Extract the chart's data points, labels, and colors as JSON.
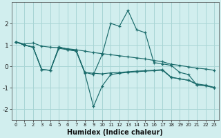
{
  "xlabel": "Humidex (Indice chaleur)",
  "background_color": "#d1eeee",
  "grid_color": "#a8d5d5",
  "line_color": "#1a6b6b",
  "x": [
    0,
    1,
    2,
    3,
    4,
    5,
    6,
    7,
    8,
    9,
    10,
    11,
    12,
    13,
    14,
    15,
    16,
    17,
    18,
    19,
    20,
    21,
    22,
    23
  ],
  "line_top_trend": [
    1.15,
    1.05,
    1.1,
    0.95,
    0.9,
    0.88,
    0.83,
    0.78,
    0.72,
    0.65,
    0.6,
    0.55,
    0.5,
    0.45,
    0.4,
    0.35,
    0.28,
    0.22,
    0.1,
    0.05,
    -0.02,
    -0.08,
    -0.12,
    -0.18
  ],
  "line_bot_trend": [
    1.15,
    1.0,
    0.9,
    -0.15,
    -0.18,
    0.85,
    0.78,
    0.72,
    -0.28,
    -0.32,
    -0.35,
    -0.3,
    -0.28,
    -0.25,
    -0.22,
    -0.2,
    -0.18,
    -0.15,
    -0.5,
    -0.58,
    -0.65,
    -0.82,
    -0.88,
    -0.98
  ],
  "line_peak": [
    1.15,
    1.0,
    0.9,
    -0.15,
    -0.18,
    0.9,
    0.8,
    0.75,
    -0.28,
    -0.38,
    0.55,
    2.02,
    1.88,
    2.62,
    1.72,
    1.58,
    0.18,
    0.12,
    0.05,
    -0.28,
    -0.38,
    -0.88,
    -0.9,
    -1.0
  ],
  "line_dip": [
    1.15,
    1.0,
    0.9,
    -0.15,
    -0.18,
    0.92,
    0.8,
    0.72,
    -0.32,
    -1.88,
    -0.92,
    -0.38,
    -0.32,
    -0.28,
    -0.25,
    -0.22,
    -0.2,
    -0.18,
    -0.52,
    -0.58,
    -0.65,
    -0.85,
    -0.9,
    -1.0
  ],
  "ylim": [
    -2.5,
    3.0
  ],
  "xlim": [
    -0.5,
    23.5
  ],
  "yticks": [
    -2,
    -1,
    0,
    1,
    2
  ],
  "xticks": [
    0,
    1,
    2,
    3,
    4,
    5,
    6,
    7,
    8,
    9,
    10,
    11,
    12,
    13,
    14,
    15,
    16,
    17,
    18,
    19,
    20,
    21,
    22,
    23
  ],
  "figsize": [
    3.2,
    2.0
  ],
  "dpi": 100
}
